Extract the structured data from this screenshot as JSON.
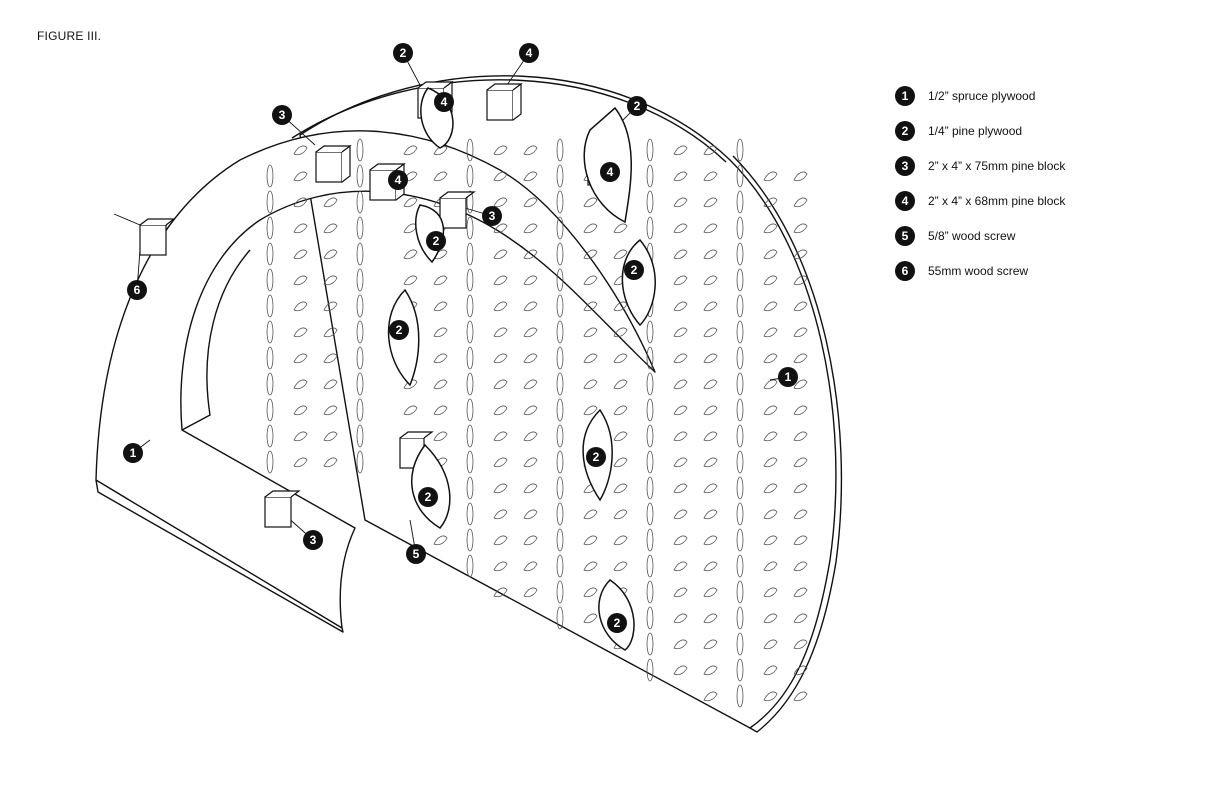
{
  "figure_title": "FIGURE III.",
  "legend": [
    {
      "num": "1",
      "label": "1/2” spruce plywood"
    },
    {
      "num": "2",
      "label": "1/4” pine plywood"
    },
    {
      "num": "3",
      "label": "2” x 4” x 75mm pine block"
    },
    {
      "num": "4",
      "label": "2” x 4” x 68mm pine block"
    },
    {
      "num": "5",
      "label": "5/8” wood screw"
    },
    {
      "num": "6",
      "label": "55mm wood screw"
    }
  ],
  "callouts": [
    "2",
    "4",
    "2",
    "3",
    "4",
    "4",
    "3",
    "2",
    "4",
    "2",
    "2",
    "1",
    "2",
    "2",
    "1",
    "3",
    "5",
    "2",
    "6"
  ]
}
